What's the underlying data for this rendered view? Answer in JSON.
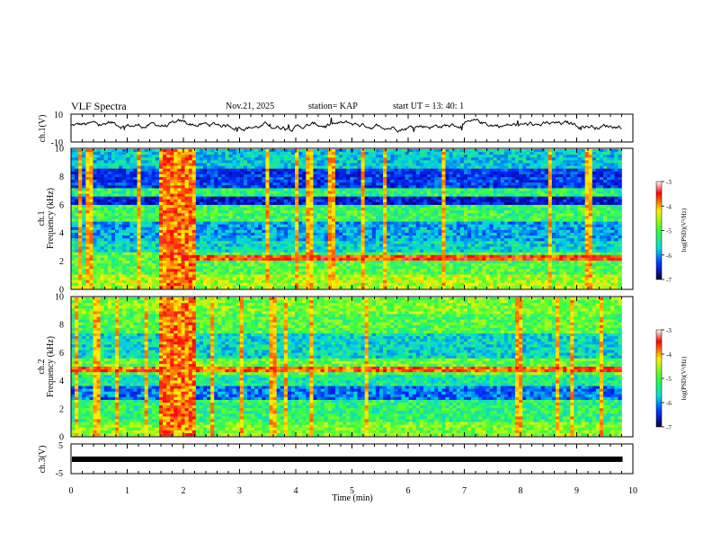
{
  "header": {
    "title": "VLF Spectra",
    "date": "Nov.21, 2025",
    "station": "station= KAP",
    "start": "start  UT =   13: 40: 1"
  },
  "chart_data": [
    {
      "type": "line",
      "title": "ch.1 waveform",
      "ylabel": "ch.1(V)",
      "ylim": [
        -10,
        10
      ],
      "yticks": [
        "10",
        "-10"
      ],
      "xlim": [
        0,
        10
      ],
      "description_values": "noisy waveform oscillating between about -2 and 6 V over 0–9.8 min"
    },
    {
      "type": "heatmap",
      "title": "ch.1 spectrogram",
      "ylabel": "ch.1\nFrequency (kHz)",
      "ylabel_line1": "ch.1",
      "ylabel_line2": "Frequency (kHz)",
      "ylim": [
        0,
        10
      ],
      "yticks": [
        "0",
        "2",
        "4",
        "6",
        "8",
        "10"
      ],
      "xlim": [
        0,
        9.8
      ],
      "color_range_log_psd": [
        -7,
        -3
      ],
      "colorbar_ticks": [
        "-3",
        "-4",
        "-5",
        "-6",
        "-7"
      ],
      "colorbar_label": "log(PSD)(V²/Hz)",
      "burst_window_min": [
        1.6,
        2.2
      ],
      "strong_line_khz": [
        2.2
      ],
      "band_edges_khz": [
        1.2,
        2.6,
        3.5,
        4.8,
        5.9,
        7.2,
        8.6,
        9.4
      ]
    },
    {
      "type": "heatmap",
      "title": "ch.2 spectrogram",
      "ylabel_line1": "ch.2",
      "ylabel_line2": "Frequency (kHz)",
      "ylim": [
        0,
        10
      ],
      "yticks": [
        "0",
        "2",
        "4",
        "6",
        "8",
        "10"
      ],
      "xlim": [
        0,
        9.8
      ],
      "color_range_log_psd": [
        -7,
        -3
      ],
      "colorbar_ticks": [
        "-3",
        "-4",
        "-5",
        "-6",
        "-7"
      ],
      "colorbar_label": "log(PSD)(V²/Hz)",
      "burst_window_min": [
        1.6,
        2.2
      ],
      "strong_line_khz": [
        4.8,
        9.0
      ],
      "band_edges_khz": [
        1.0,
        2.6,
        3.6,
        4.5,
        5.6,
        7.5,
        8.8
      ]
    },
    {
      "type": "line",
      "title": "ch.3 waveform",
      "ylabel": "ch.3(V)",
      "ylim": [
        -5,
        5
      ],
      "yticks": [
        "5",
        "-5"
      ],
      "xlim": [
        0,
        10
      ],
      "xlabel": "Time  (min)",
      "xticks": [
        "0",
        "1",
        "2",
        "3",
        "4",
        "5",
        "6",
        "7",
        "8",
        "9",
        "10"
      ],
      "level_v": 0,
      "description_values": "flat thick band near 0 V from 0 to 9.8 min"
    }
  ]
}
